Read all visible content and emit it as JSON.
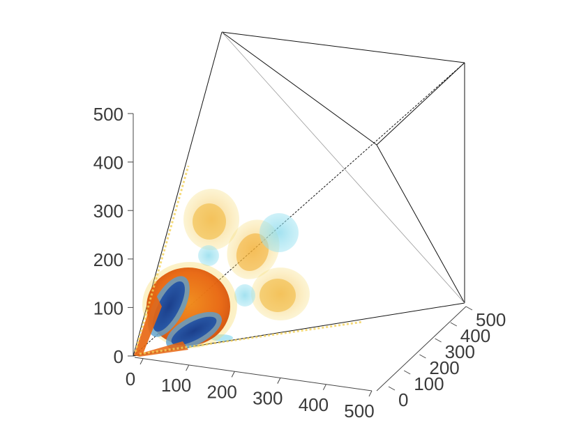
{
  "chart_data": {
    "type": "3d-isosurface",
    "axes": {
      "x": {
        "ticks": [
          "0",
          "100",
          "200",
          "300",
          "400",
          "500"
        ],
        "range": [
          0,
          500
        ]
      },
      "y": {
        "ticks": [
          "0",
          "100",
          "200",
          "300",
          "400",
          "500"
        ],
        "range": [
          0,
          500
        ]
      },
      "z": {
        "ticks": [
          "0",
          "100",
          "200",
          "300",
          "400",
          "500"
        ],
        "range": [
          0,
          500
        ]
      }
    },
    "grid": false,
    "legend": "none",
    "colors": {
      "positive_core": "#e8650f",
      "positive_shell": "#f5b830",
      "positive_outer": "#f7dc6a",
      "negative_core": "#1b3f8c",
      "negative_shell": "#5aa0d0",
      "negative_outer": "#7fd6ea"
    },
    "blobs": [
      {
        "name": "pos-lobe-1",
        "center": [
          40,
          40,
          40
        ],
        "sign": "positive",
        "level": "high"
      },
      {
        "name": "neg-lobe-1",
        "center": [
          20,
          50,
          70
        ],
        "sign": "negative",
        "level": "high"
      },
      {
        "name": "neg-lobe-2",
        "center": [
          70,
          30,
          20
        ],
        "sign": "negative",
        "level": "high"
      },
      {
        "name": "pos-lobe-2",
        "center": [
          150,
          150,
          200
        ],
        "sign": "positive",
        "level": "medium"
      },
      {
        "name": "pos-lobe-3",
        "center": [
          220,
          220,
          220
        ],
        "sign": "positive",
        "level": "medium"
      },
      {
        "name": "pos-lobe-4",
        "center": [
          230,
          200,
          110
        ],
        "sign": "positive",
        "level": "medium"
      },
      {
        "name": "neg-lobe-3",
        "center": [
          300,
          310,
          300
        ],
        "sign": "negative",
        "level": "low"
      },
      {
        "name": "neg-lobe-4",
        "center": [
          120,
          130,
          150
        ],
        "sign": "negative",
        "level": "low"
      },
      {
        "name": "neg-lobe-5",
        "center": [
          200,
          180,
          90
        ],
        "sign": "negative",
        "level": "low"
      }
    ]
  }
}
